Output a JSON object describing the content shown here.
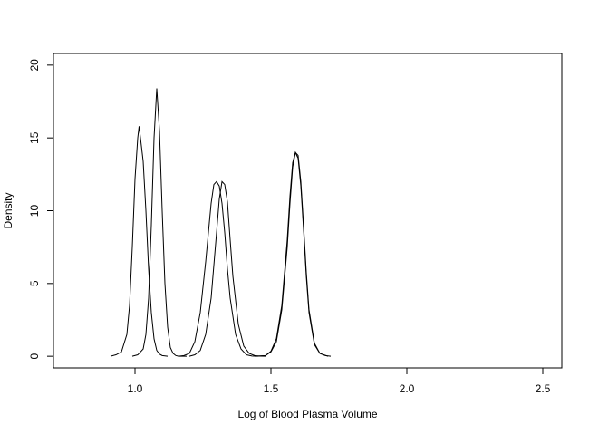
{
  "chart_data": {
    "type": "line",
    "title": "",
    "xlabel": "Log of Blood Plasma Volume",
    "ylabel": "Density",
    "xlim": [
      0.7,
      2.57
    ],
    "ylim": [
      -0.8,
      20.8
    ],
    "x_ticks": [
      1.0,
      1.5,
      2.0,
      2.5
    ],
    "x_tick_labels": [
      "1.0",
      "1.5",
      "2.0",
      "2.5"
    ],
    "y_ticks": [
      0,
      5,
      10,
      15,
      20
    ],
    "y_tick_labels": [
      "0",
      "5",
      "10",
      "15",
      "20"
    ],
    "grid": false,
    "legend": "none",
    "line_color": "#000000",
    "series": [
      {
        "x": [
          0.91,
          0.93,
          0.95,
          0.97,
          0.98,
          0.99,
          1.0,
          1.01,
          1.015,
          1.02,
          1.03,
          1.04,
          1.05,
          1.06,
          1.07,
          1.08,
          1.09,
          1.1,
          1.12
        ],
        "values": [
          0,
          0.1,
          0.3,
          1.5,
          3.5,
          7.5,
          12.2,
          15.0,
          15.8,
          15.0,
          13.4,
          10.0,
          6.0,
          3.0,
          1.2,
          0.4,
          0.15,
          0.05,
          0
        ]
      },
      {
        "x": [
          0.99,
          1.01,
          1.03,
          1.04,
          1.05,
          1.06,
          1.07,
          1.08,
          1.09,
          1.1,
          1.11,
          1.12,
          1.13,
          1.14,
          1.15,
          1.16,
          1.17,
          1.19
        ],
        "values": [
          0,
          0.1,
          0.5,
          1.5,
          4.0,
          9.0,
          15.0,
          18.4,
          15.5,
          10.0,
          5.0,
          2.0,
          0.6,
          0.2,
          0.05,
          0,
          0,
          0
        ]
      },
      {
        "x": [
          1.16,
          1.18,
          1.2,
          1.22,
          1.24,
          1.26,
          1.28,
          1.29,
          1.3,
          1.31,
          1.32,
          1.33,
          1.34,
          1.35,
          1.37,
          1.39,
          1.41,
          1.43,
          1.45
        ],
        "values": [
          0,
          0.05,
          0.2,
          1.0,
          3.0,
          6.5,
          10.5,
          11.8,
          12.0,
          11.7,
          10.5,
          8.5,
          6.0,
          4.0,
          1.5,
          0.5,
          0.1,
          0.02,
          0
        ]
      },
      {
        "x": [
          1.2,
          1.22,
          1.24,
          1.26,
          1.28,
          1.3,
          1.31,
          1.32,
          1.33,
          1.34,
          1.35,
          1.36,
          1.38,
          1.4,
          1.42,
          1.44,
          1.46,
          1.48
        ],
        "values": [
          0,
          0.1,
          0.4,
          1.5,
          4.0,
          8.5,
          10.8,
          12.0,
          11.8,
          10.6,
          8.0,
          5.5,
          2.2,
          0.7,
          0.2,
          0.05,
          0.01,
          0
        ]
      },
      {
        "x": [
          1.44,
          1.48,
          1.5,
          1.52,
          1.54,
          1.56,
          1.57,
          1.58,
          1.59,
          1.6,
          1.61,
          1.62,
          1.63,
          1.64,
          1.66,
          1.68,
          1.7,
          1.72
        ],
        "values": [
          0,
          0.05,
          0.3,
          1.0,
          3.2,
          7.5,
          10.5,
          13.0,
          14.0,
          13.8,
          12.0,
          9.0,
          5.8,
          3.2,
          0.9,
          0.2,
          0.05,
          0
        ]
      },
      {
        "x": [
          1.45,
          1.48,
          1.5,
          1.52,
          1.54,
          1.56,
          1.57,
          1.58,
          1.59,
          1.6,
          1.61,
          1.62,
          1.63,
          1.64,
          1.66,
          1.68,
          1.71
        ],
        "values": [
          0,
          0.05,
          0.35,
          1.2,
          3.5,
          8.0,
          11.0,
          13.3,
          14.0,
          13.6,
          11.7,
          8.7,
          5.5,
          3.0,
          0.8,
          0.2,
          0
        ]
      }
    ]
  }
}
